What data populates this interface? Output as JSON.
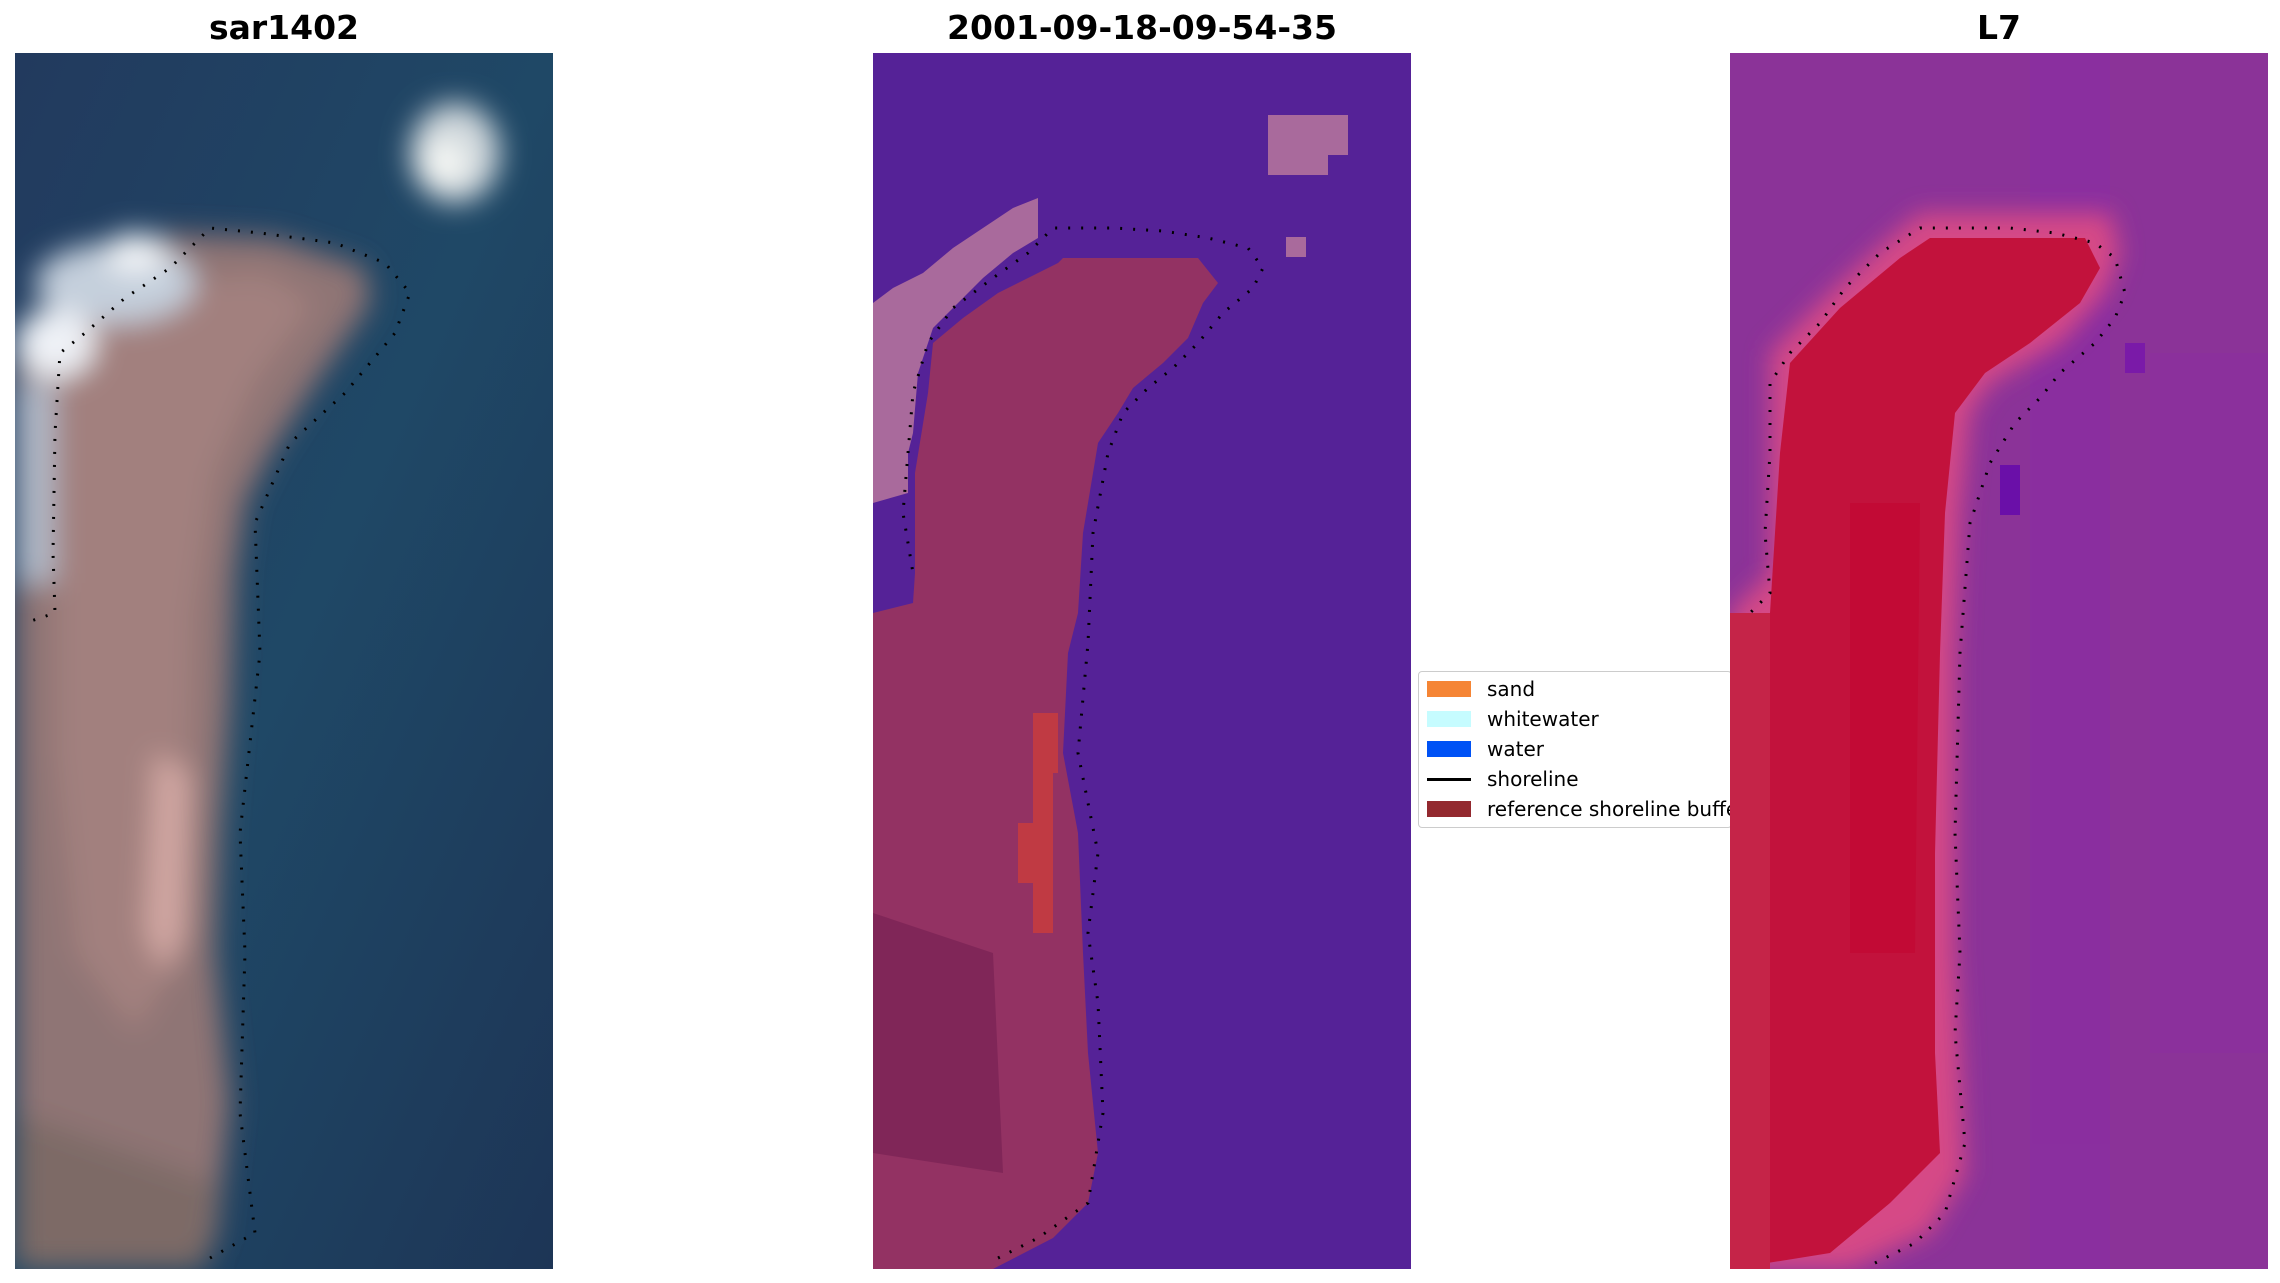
{
  "panels": [
    {
      "title": "sar1402"
    },
    {
      "title": "2001-09-18-09-54-35"
    },
    {
      "title": "L7"
    }
  ],
  "legend": {
    "items": [
      {
        "label": "sand",
        "color": "#f58535"
      },
      {
        "label": "whitewater",
        "color": "#c6fcff"
      },
      {
        "label": "water",
        "color": "#0052f5"
      },
      {
        "label": "shoreline",
        "color": "#000000",
        "kind": "line"
      },
      {
        "label": "reference shoreline buffer",
        "color": "#93292f"
      }
    ]
  },
  "colors": {
    "classified_water": "#552297",
    "classified_land": "#933263",
    "classified_whitewater": "#a96a9c",
    "classified_sand": "#c03a43",
    "rgb_water": "#1f3a5e",
    "rgb_land": "#9a7d7a",
    "mndwi_background": "#8b3398",
    "mndwi_land": "#c2123c",
    "shoreline": "#000000"
  }
}
